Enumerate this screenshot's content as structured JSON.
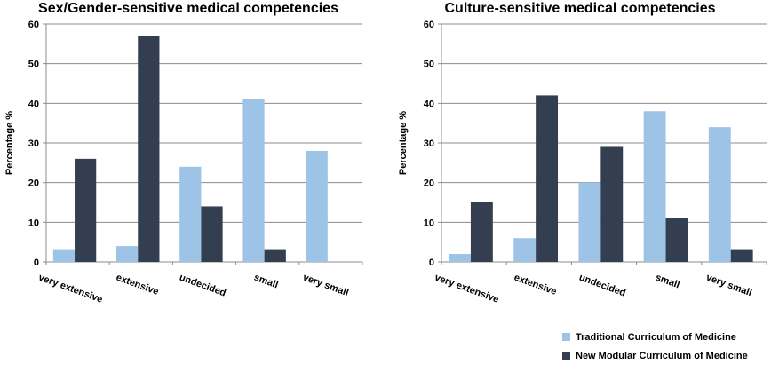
{
  "chart_data": [
    {
      "type": "bar",
      "title": "Sex/Gender-sensitive medical competencies",
      "xlabel": "",
      "ylabel": "Percentage %",
      "ylim": [
        0,
        60
      ],
      "yticks": [
        0,
        10,
        20,
        30,
        40,
        50,
        60
      ],
      "grid": true,
      "categories": [
        "very extensive",
        "extensive",
        "undecided",
        "small",
        "very small"
      ],
      "series": [
        {
          "name": "Traditional Curriculum of Medicine",
          "color": "#9dc3e6",
          "values": [
            3,
            4,
            24,
            41,
            28
          ]
        },
        {
          "name": "New Modular Curriculum of Medicine",
          "color": "#333f50",
          "values": [
            26,
            57,
            14,
            3,
            0
          ]
        }
      ]
    },
    {
      "type": "bar",
      "title": "Culture-sensitive medical competencies",
      "xlabel": "",
      "ylabel": "Percentage %",
      "ylim": [
        0,
        60
      ],
      "yticks": [
        0,
        10,
        20,
        30,
        40,
        50,
        60
      ],
      "grid": true,
      "categories": [
        "very extensive",
        "extensive",
        "undecided",
        "small",
        "very small"
      ],
      "series": [
        {
          "name": "Traditional Curriculum of Medicine",
          "color": "#9dc3e6",
          "values": [
            2,
            6,
            20,
            38,
            34
          ]
        },
        {
          "name": "New Modular Curriculum of Medicine",
          "color": "#333f50",
          "values": [
            15,
            42,
            29,
            11,
            3
          ]
        }
      ]
    }
  ],
  "legend": {
    "placement": "bottom-right",
    "items": [
      {
        "label": "Traditional Curriculum of Medicine",
        "color": "#9dc3e6"
      },
      {
        "label": "New Modular Curriculum of Medicine",
        "color": "#333f50"
      }
    ]
  }
}
